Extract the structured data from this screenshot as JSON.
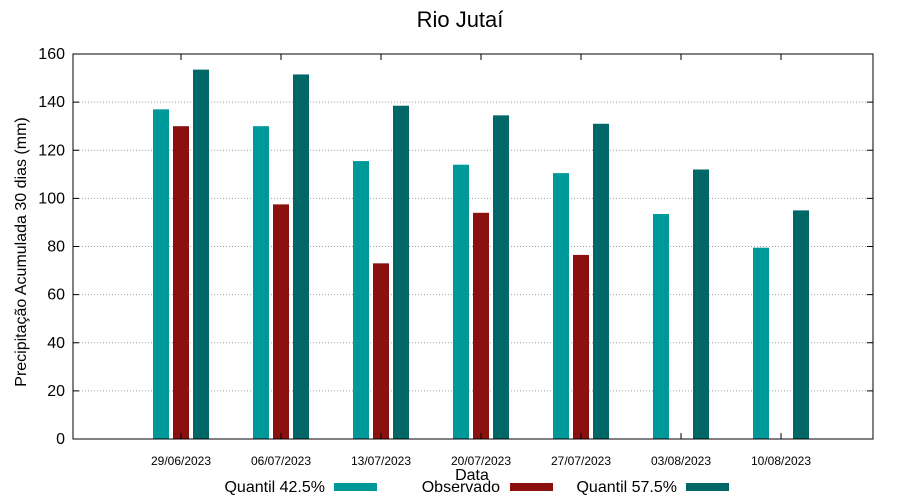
{
  "chart_data": {
    "type": "bar",
    "title": "Rio Jutaí",
    "xlabel": "Data",
    "ylabel": "Precipitação Acumulada 30 dias (mm)",
    "ylim": [
      0,
      160
    ],
    "yticks": [
      0,
      20,
      40,
      60,
      80,
      100,
      120,
      140,
      160
    ],
    "grid": true,
    "legend_position": "bottom",
    "categories": [
      "29/06/2023",
      "06/07/2023",
      "13/07/2023",
      "20/07/2023",
      "27/07/2023",
      "03/08/2023",
      "10/08/2023"
    ],
    "series": [
      {
        "name": "Quantil 42.5%",
        "color": "#009999",
        "values": [
          137,
          130,
          115.5,
          114,
          110.5,
          93.5,
          79.5
        ]
      },
      {
        "name": "Observado",
        "color": "#8b1010",
        "values": [
          130,
          97.5,
          73,
          94,
          76.5,
          null,
          null
        ]
      },
      {
        "name": "Quantil 57.5%",
        "color": "#006666",
        "values": [
          153.5,
          151.5,
          138.5,
          134.5,
          131,
          112,
          95
        ]
      }
    ]
  }
}
